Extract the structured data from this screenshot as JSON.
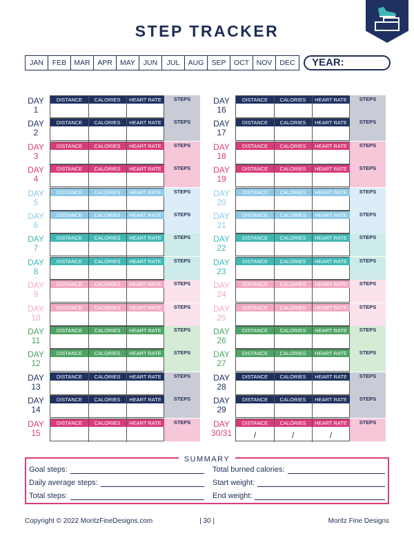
{
  "title": "STEP TRACKER",
  "months": [
    "JAN",
    "FEB",
    "MAR",
    "APR",
    "MAY",
    "JUN",
    "JUL",
    "AUG",
    "SEP",
    "OCT",
    "NOV",
    "DEC"
  ],
  "year_label": "YEAR:",
  "headers": [
    "DISTANCE",
    "CALORIES",
    "HEART RATE"
  ],
  "steps_label": "STEPS",
  "colors": {
    "navy": "#1f3160",
    "pink": "#d83c7a",
    "lightblue": "#8ec9e6",
    "teal": "#3fb8b5",
    "lightpink": "#f2a9c4",
    "green": "#4da463",
    "steps_navy": "#c9ccd6",
    "steps_pink": "#f6c6d9",
    "steps_lightblue": "#dcedf7",
    "steps_teal": "#cdebe8",
    "steps_lightpink": "#fbe2ec",
    "steps_green": "#d4ecd6"
  },
  "days_left": [
    {
      "line1": "DAY",
      "line2": "1",
      "theme": "navy"
    },
    {
      "line1": "DAY",
      "line2": "2",
      "theme": "navy"
    },
    {
      "line1": "DAY",
      "line2": "3",
      "theme": "pink"
    },
    {
      "line1": "DAY",
      "line2": "4",
      "theme": "pink"
    },
    {
      "line1": "DAY",
      "line2": "5",
      "theme": "lightblue"
    },
    {
      "line1": "DAY",
      "line2": "6",
      "theme": "lightblue"
    },
    {
      "line1": "DAY",
      "line2": "7",
      "theme": "teal"
    },
    {
      "line1": "DAY",
      "line2": "8",
      "theme": "teal"
    },
    {
      "line1": "DAY",
      "line2": "9",
      "theme": "lightpink"
    },
    {
      "line1": "DAY",
      "line2": "10",
      "theme": "lightpink"
    },
    {
      "line1": "DAY",
      "line2": "11",
      "theme": "green"
    },
    {
      "line1": "DAY",
      "line2": "12",
      "theme": "green"
    },
    {
      "line1": "DAY",
      "line2": "13",
      "theme": "navy"
    },
    {
      "line1": "DAY",
      "line2": "14",
      "theme": "navy"
    },
    {
      "line1": "DAY",
      "line2": "15",
      "theme": "pink"
    }
  ],
  "days_right": [
    {
      "line1": "DAY",
      "line2": "16",
      "theme": "navy"
    },
    {
      "line1": "DAY",
      "line2": "17",
      "theme": "navy"
    },
    {
      "line1": "DAY",
      "line2": "18",
      "theme": "pink"
    },
    {
      "line1": "DAY",
      "line2": "19",
      "theme": "pink"
    },
    {
      "line1": "DAY",
      "line2": "20",
      "theme": "lightblue"
    },
    {
      "line1": "DAY",
      "line2": "21",
      "theme": "lightblue"
    },
    {
      "line1": "DAY",
      "line2": "22",
      "theme": "teal"
    },
    {
      "line1": "DAY",
      "line2": "23",
      "theme": "teal"
    },
    {
      "line1": "DAY",
      "line2": "24",
      "theme": "lightpink"
    },
    {
      "line1": "DAY",
      "line2": "25",
      "theme": "lightpink"
    },
    {
      "line1": "DAY",
      "line2": "26",
      "theme": "green"
    },
    {
      "line1": "DAY",
      "line2": "27",
      "theme": "green"
    },
    {
      "line1": "DAY",
      "line2": "28",
      "theme": "navy"
    },
    {
      "line1": "DAY",
      "line2": "29",
      "theme": "navy"
    },
    {
      "line1": "DAY",
      "line2": "30/31",
      "theme": "pink",
      "slash": "/"
    }
  ],
  "summary": {
    "title": "SUMMARY",
    "goal_steps": "Goal steps:",
    "daily_average_steps": "Daily average steps:",
    "total_steps": "Total steps:",
    "total_burned_calories": "Total burned calories:",
    "start_weight": "Start weight:",
    "end_weight": "End weight:"
  },
  "footer": {
    "copyright": "Copyright © 2022 MoritzFineDesigns.com",
    "page": "| 30 |",
    "brand": "Moritz Fine Designs"
  }
}
